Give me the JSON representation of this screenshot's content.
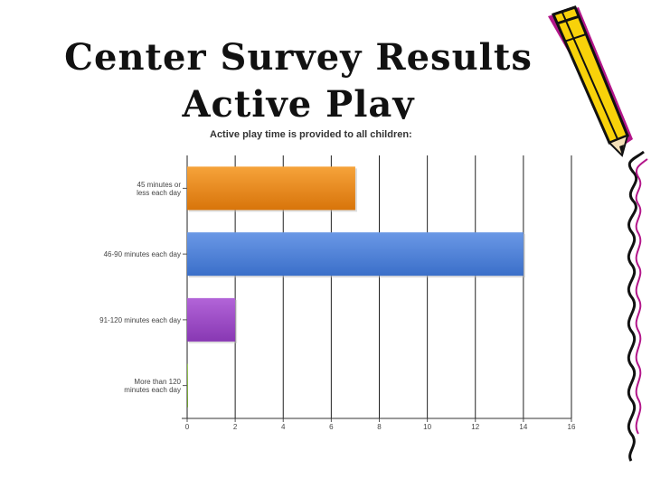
{
  "slide": {
    "title_line1": "Center Survey Results",
    "title_line2": "Active Play"
  },
  "colors": {
    "orange": "#e8890f",
    "blue": "#4a80d8",
    "purple": "#9a4ac6",
    "pencil_yellow": "#f8d20a",
    "pencil_shadow": "#b3168a"
  },
  "icons": [
    "pencil-icon",
    "squiggle-border"
  ],
  "chart_data": {
    "type": "bar",
    "orientation": "horizontal",
    "title": "Active play time is provided to all children:",
    "categories": [
      [
        "45 minutes or",
        "less each day"
      ],
      [
        "46-90 minutes each day"
      ],
      [
        "91-120 minutes each day"
      ],
      [
        "More than 120",
        "minutes each day"
      ]
    ],
    "values": [
      7,
      14,
      2,
      0
    ],
    "colors": [
      "#e8890f",
      "#4a80d8",
      "#9a4ac6",
      "#7fae3a"
    ],
    "xlim": [
      0,
      16
    ],
    "xticks": [
      0,
      2,
      4,
      6,
      8,
      10,
      12,
      14,
      16
    ],
    "grid": true,
    "legend": "none"
  }
}
